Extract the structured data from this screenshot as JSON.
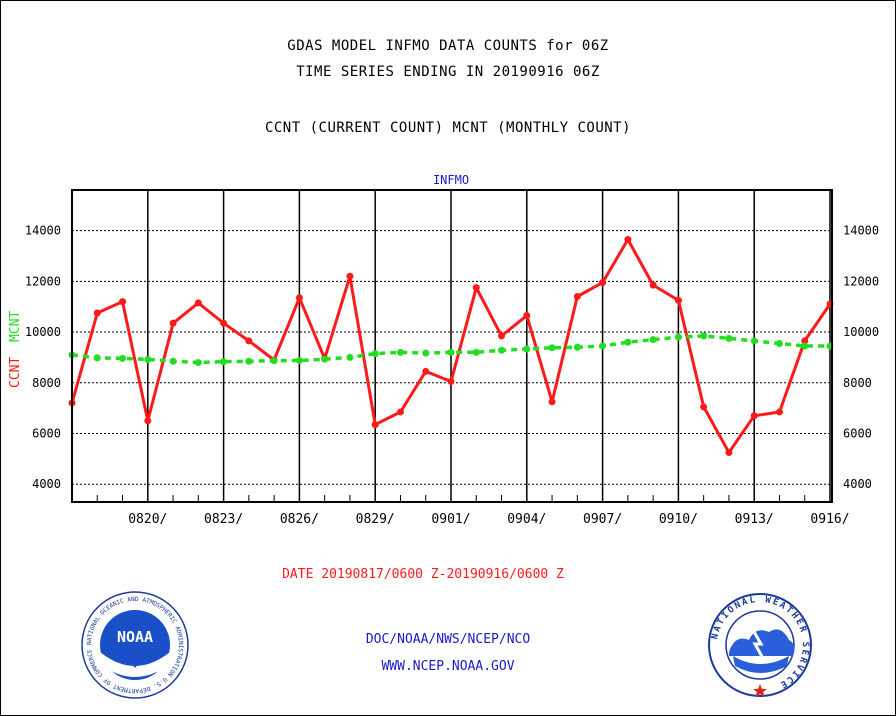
{
  "header": {
    "title_line1": "GDAS MODEL INFMO DATA COUNTS for 06Z",
    "title_line2": "TIME SERIES ENDING IN 20190916 06Z",
    "subtitle": "CCNT (CURRENT COUNT) MCNT (MONTHLY COUNT)"
  },
  "chart_data": {
    "type": "line",
    "title": "INFMO",
    "ylabel_ccnt": "CCNT",
    "ylabel_mcnt": "MCNT",
    "xlabel": "DATE 20190817/0600 Z-20190916/0600 Z",
    "ylim": [
      3300,
      15600
    ],
    "yticks": [
      4000,
      6000,
      8000,
      10000,
      12000,
      14000
    ],
    "x_start": "0817",
    "x_end": "0916",
    "xtick_labels": [
      "0820/",
      "0823/",
      "0826/",
      "0829/",
      "0901/",
      "0904/",
      "0907/",
      "0910/",
      "0913/",
      "0916/"
    ],
    "grid": true,
    "colors": {
      "ccnt": "#ff1a1a",
      "mcnt": "#22dd22",
      "title": "#1a1acc"
    },
    "series": [
      {
        "name": "CCNT",
        "values": [
          7200,
          10750,
          11200,
          6500,
          10350,
          11150,
          10350,
          9650,
          8900,
          11350,
          8950,
          12200,
          6350,
          6850,
          8450,
          8050,
          11750,
          9850,
          10650,
          7250,
          11400,
          11950,
          13650,
          11850,
          11250,
          7050,
          5250,
          6700,
          6850,
          9650,
          11100
        ]
      },
      {
        "name": "MCNT",
        "values": [
          9100,
          8980,
          8960,
          8920,
          8850,
          8800,
          8830,
          8850,
          8870,
          8880,
          8930,
          9000,
          9150,
          9200,
          9170,
          9200,
          9200,
          9280,
          9330,
          9380,
          9400,
          9450,
          9600,
          9700,
          9800,
          9850,
          9750,
          9650,
          9550,
          9450,
          9450
        ]
      }
    ]
  },
  "footer": {
    "org": "DOC/NOAA/NWS/NCEP/NCO",
    "url": "WWW.NCEP.NOAA.GOV",
    "noaa_logo_text": "NOAA",
    "noaa_ring_text": "NATIONAL OCEANIC AND ATMOSPHERIC ADMINISTRATION U.S. DEPARTMENT OF COMMERCE",
    "nws_ring_text": "NATIONAL WEATHER SERVICE"
  }
}
